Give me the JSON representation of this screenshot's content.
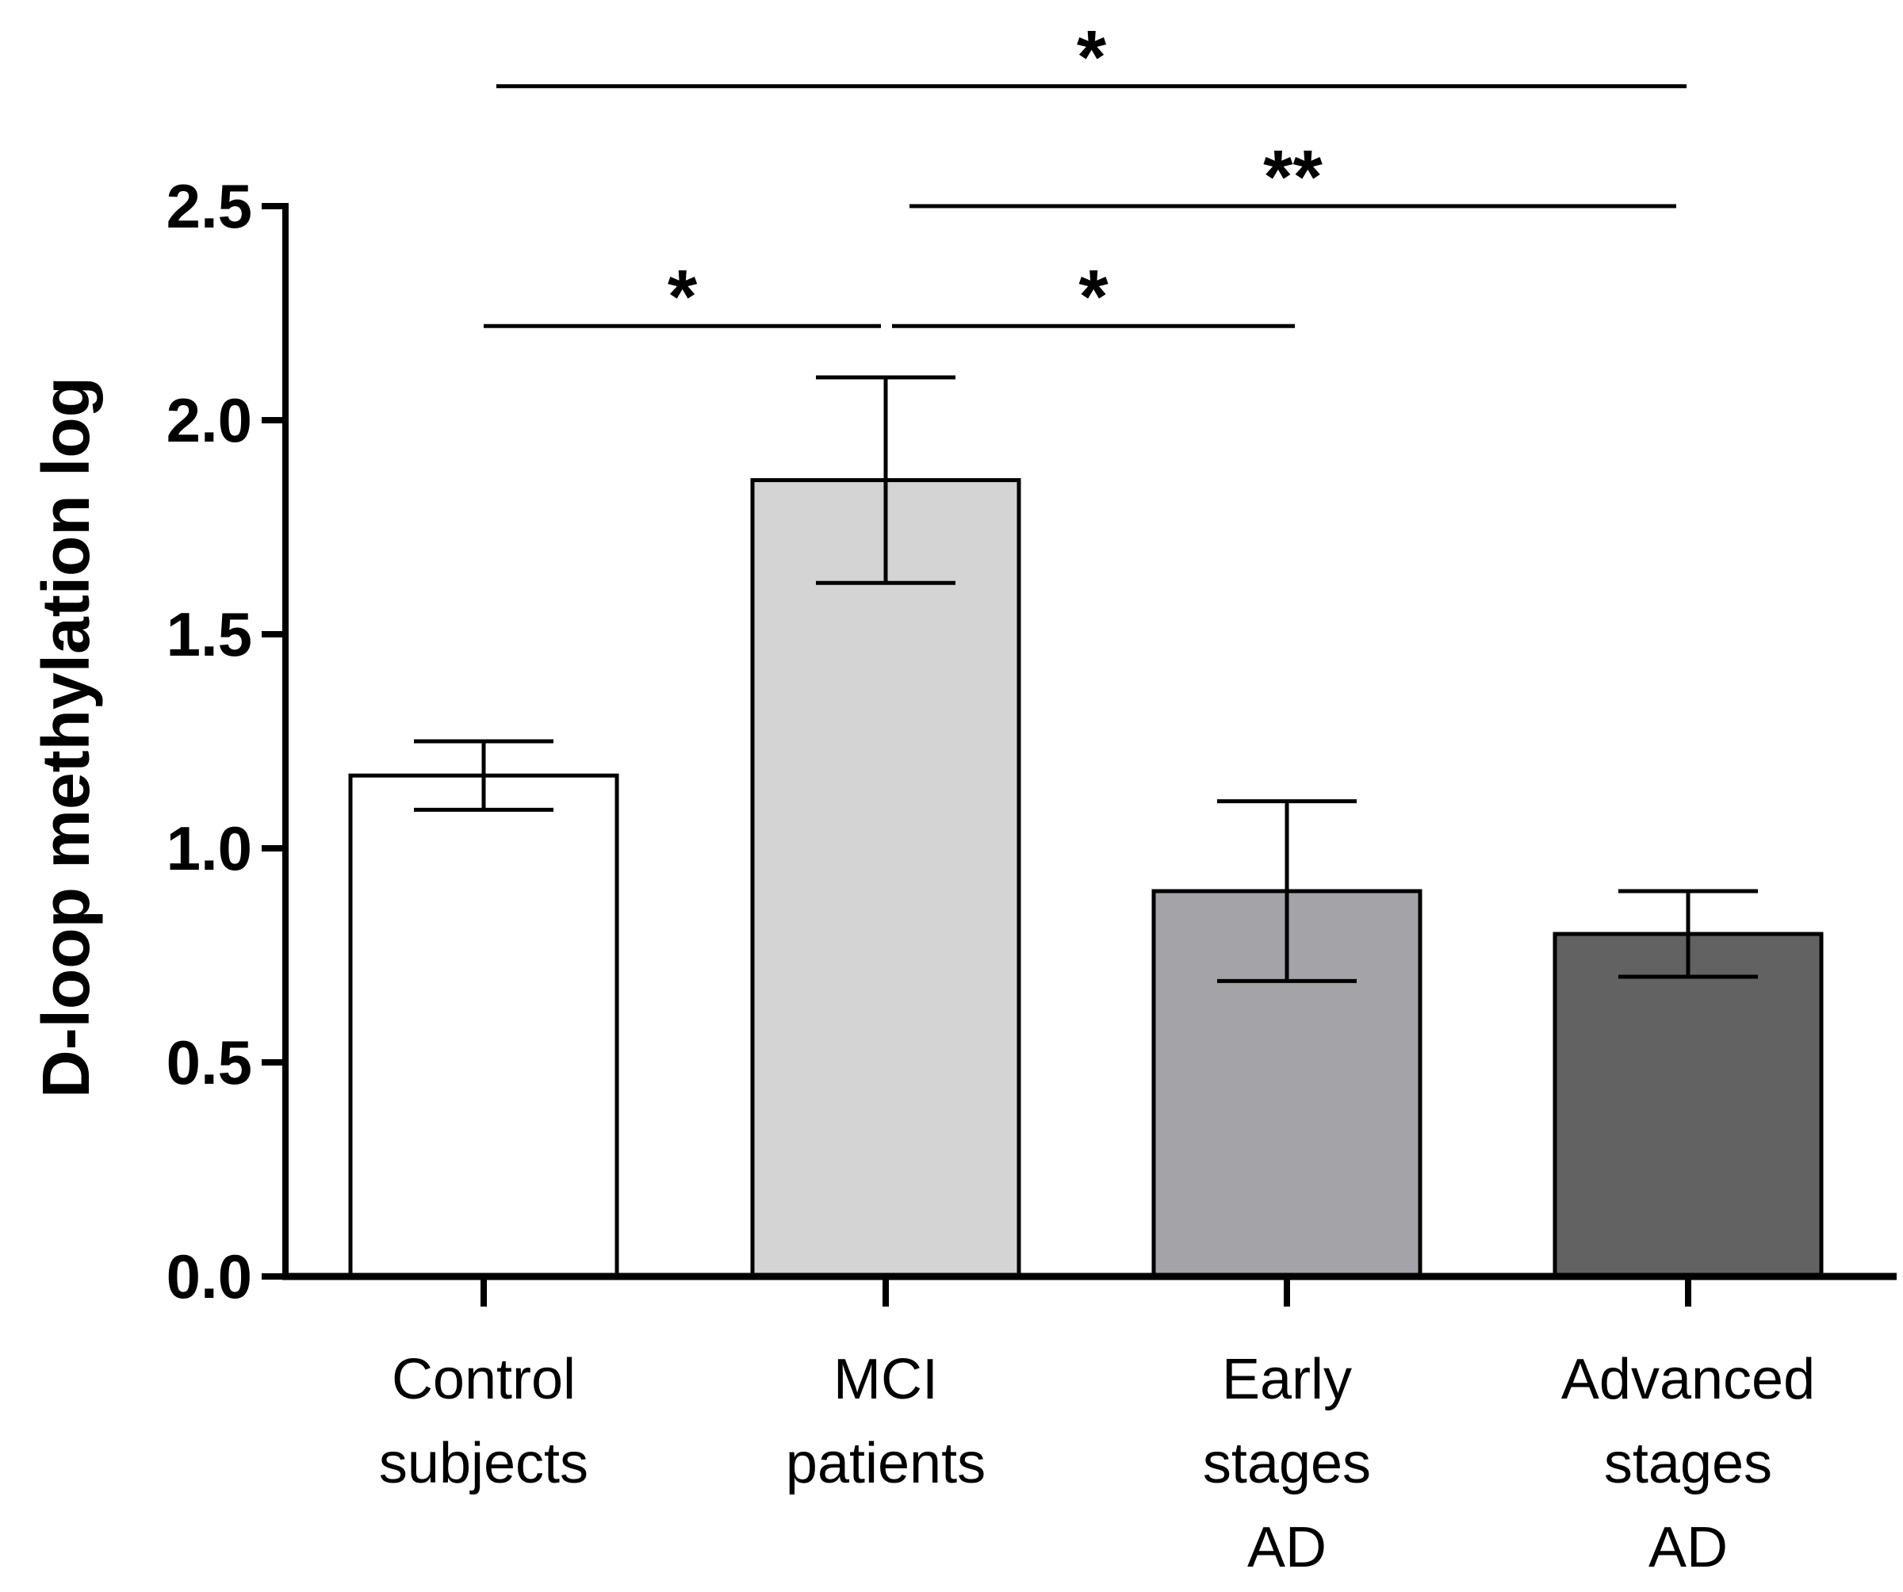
{
  "chart_data": {
    "type": "bar",
    "title": "",
    "xlabel": "",
    "ylabel": "D-loop methylation log",
    "ylim": [
      0,
      2.5
    ],
    "yticks": [
      "0.0",
      "0.5",
      "1.0",
      "1.5",
      "2.0",
      "2.5"
    ],
    "grid": false,
    "categories": [
      [
        "Control",
        "subjects"
      ],
      [
        "MCI",
        "patients"
      ],
      [
        "Early",
        "stages",
        "AD"
      ],
      [
        "Advanced",
        "stages",
        "AD"
      ]
    ],
    "values": [
      1.17,
      1.86,
      0.9,
      0.8
    ],
    "errors": [
      {
        "low": 1.09,
        "high": 1.25
      },
      {
        "low": 1.62,
        "high": 2.1
      },
      {
        "low": 0.69,
        "high": 1.11
      },
      {
        "low": 0.7,
        "high": 0.9
      }
    ],
    "bar_colors": [
      "#ffffff",
      "#d4d4d4",
      "#a4a3a8",
      "#626262"
    ],
    "significance": [
      {
        "from": 0,
        "to": 1,
        "label": "*",
        "y": 2.22
      },
      {
        "from": 1,
        "to": 2,
        "label": "*",
        "y": 2.22
      },
      {
        "from": 1,
        "to": 3,
        "label": "**",
        "y": 2.5
      },
      {
        "from": 0,
        "to": 3,
        "label": "*",
        "y": 2.78
      }
    ]
  }
}
